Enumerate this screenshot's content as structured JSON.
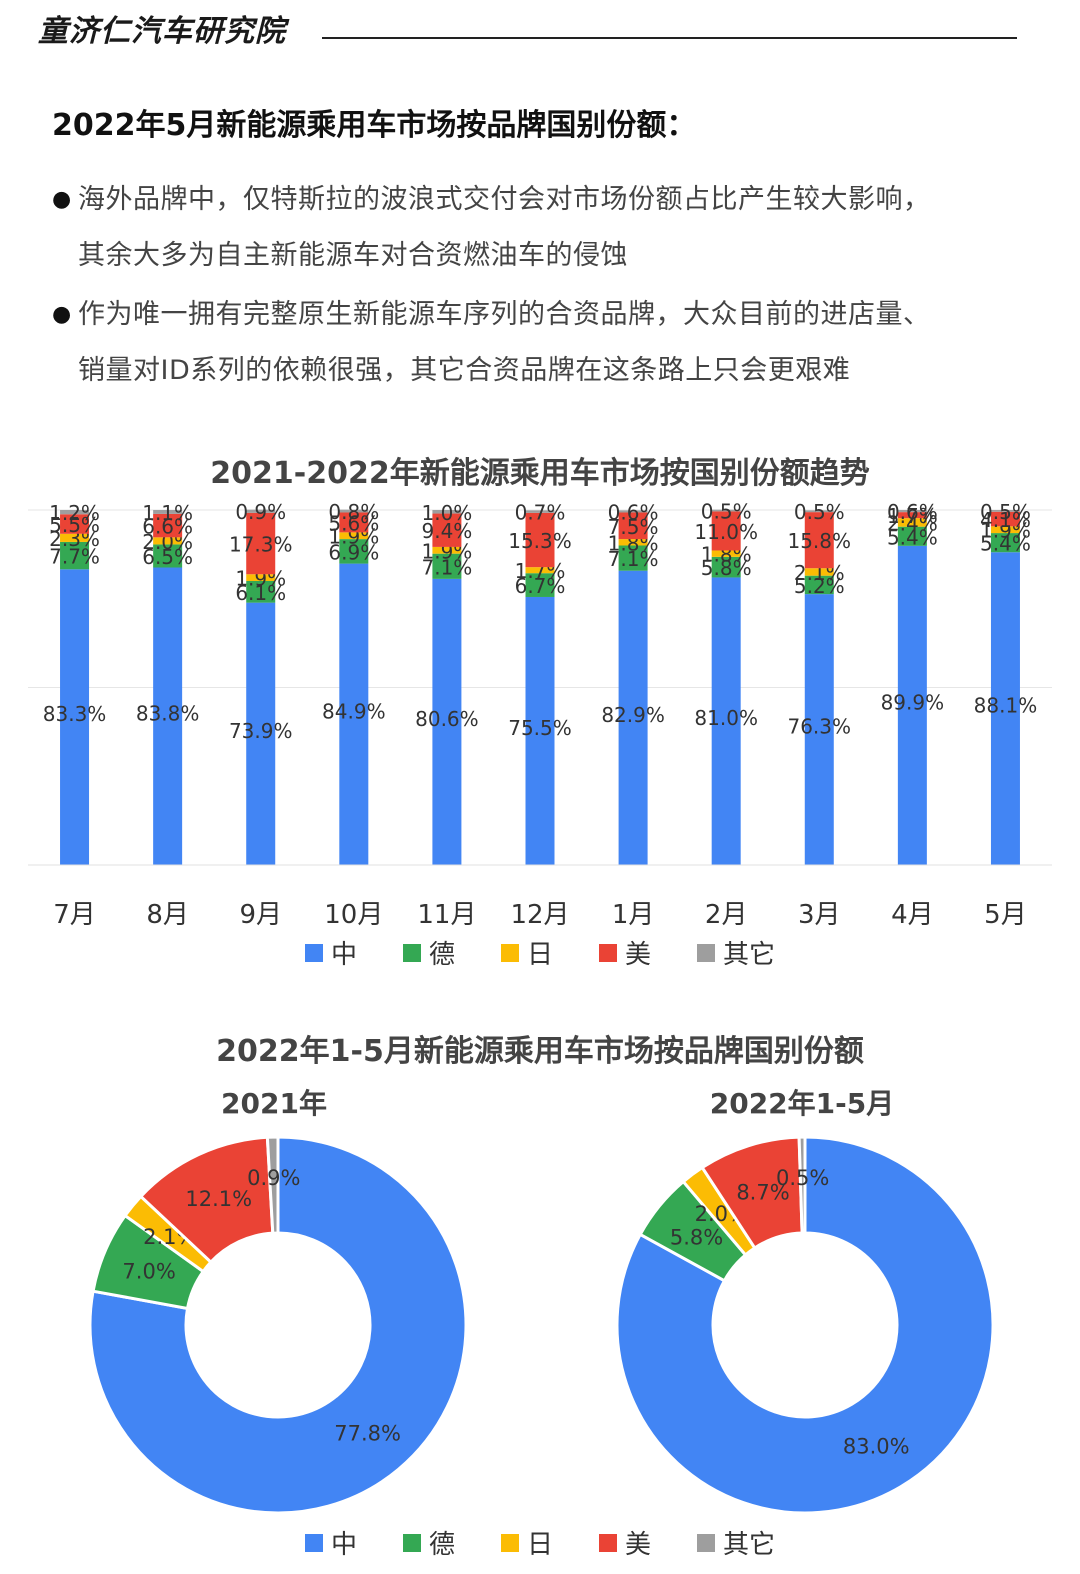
{
  "header": {
    "brand": "童济仁汽车研究院"
  },
  "heading": "2022年5月新能源乘用车市场按品牌国别份额：",
  "bullets": [
    {
      "lines": [
        "海外品牌中，仅特斯拉的波浪式交付会对市场份额占比产生较大影响，",
        "其余大多为自主新能源车对合资燃油车的侵蚀"
      ]
    },
    {
      "lines": [
        "作为唯一拥有完整原生新能源车序列的合资品牌，大众目前的进店量、",
        "销量对ID系列的依赖很强，其它合资品牌在这条路上只会更艰难"
      ]
    }
  ],
  "colors": {
    "中": "#4285f4",
    "德": "#34a853",
    "日": "#fbbc04",
    "美": "#ea4335",
    "其它": "#9e9e9e"
  },
  "chart_data": [
    {
      "type": "bar",
      "stacked": true,
      "title": "2021-2022年新能源乘用车市场按国别份额趋势",
      "categories": [
        "7月",
        "8月",
        "9月",
        "10月",
        "11月",
        "12月",
        "1月",
        "2月",
        "3月",
        "4月",
        "5月"
      ],
      "series": [
        {
          "name": "中",
          "values": [
            83.3,
            83.8,
            73.9,
            84.9,
            80.6,
            75.5,
            82.9,
            81.0,
            76.3,
            89.9,
            88.1
          ],
          "labels": [
            "83.3%",
            "83.8%",
            "73.9%",
            "84.9%",
            "80.6%",
            "75.5%",
            "82.9%",
            "81.0%",
            "76.3%",
            "89.9%",
            "88.1%"
          ]
        },
        {
          "name": "德",
          "values": [
            7.7,
            6.5,
            6.1,
            6.9,
            7.1,
            6.7,
            7.1,
            5.8,
            5.2,
            5.4,
            5.4
          ],
          "labels": [
            "7.7%",
            "6.5%",
            "6.1%",
            "6.9%",
            "7.1%",
            "6.7%",
            "7.1%",
            "5.8%",
            "5.2%",
            "5.4%",
            "5.4%"
          ]
        },
        {
          "name": "日",
          "values": [
            2.3,
            2.0,
            1.9,
            1.9,
            1.9,
            1.7,
            1.8,
            1.8,
            2.1,
            2.4,
            1.9
          ],
          "labels": [
            "2.3%",
            "2.0%",
            "1.9%",
            "1.9%",
            "1.9%",
            "1.7%",
            "1.8%",
            "1.8%",
            "2.1%",
            "2.4%",
            "1.9%"
          ]
        },
        {
          "name": "美",
          "values": [
            5.5,
            6.6,
            17.3,
            5.6,
            9.4,
            15.3,
            7.5,
            11.0,
            15.8,
            1.7,
            4.1
          ],
          "labels": [
            "5.5%",
            "6.6%",
            "17.3%",
            "5.6%",
            "9.4%",
            "15.3%",
            "7.5%",
            "11.0%",
            "15.8%",
            "1.7%",
            "4.1%"
          ]
        },
        {
          "name": "其它",
          "values": [
            1.2,
            1.1,
            0.9,
            0.8,
            1.0,
            0.7,
            0.6,
            0.5,
            0.5,
            0.6,
            0.5
          ],
          "labels": [
            "1.2%",
            "1.1%",
            "0.9%",
            "0.8%",
            "1.0%",
            "0.7%",
            "0.6%",
            "0.5%",
            "0.5%",
            "0.6%",
            "0.5%"
          ]
        }
      ],
      "ylim": [
        0,
        100
      ],
      "grid": true,
      "legend": "bottom"
    },
    {
      "type": "pie",
      "donut": true,
      "title": "2022年1-5月新能源乘用车市场按品牌国别份额",
      "charts": [
        {
          "subtitle": "2021年",
          "slices": [
            {
              "name": "中",
              "value": 77.8,
              "label": "77.8%"
            },
            {
              "name": "德",
              "value": 7.0,
              "label": "7.0%"
            },
            {
              "name": "日",
              "value": 2.1,
              "label": "2.1%"
            },
            {
              "name": "美",
              "value": 12.1,
              "label": "12.1%"
            },
            {
              "name": "其它",
              "value": 0.9,
              "label": "0.9%"
            }
          ]
        },
        {
          "subtitle": "2022年1-5月",
          "slices": [
            {
              "name": "中",
              "value": 83.0,
              "label": "83.0%"
            },
            {
              "name": "德",
              "value": 5.8,
              "label": "5.8%"
            },
            {
              "name": "日",
              "value": 2.0,
              "label": "2.0%"
            },
            {
              "name": "美",
              "value": 8.7,
              "label": "8.7%"
            },
            {
              "name": "其它",
              "value": 0.5,
              "label": "0.5%"
            }
          ]
        }
      ],
      "legend": "bottom"
    }
  ],
  "legend": [
    "中",
    "德",
    "日",
    "美",
    "其它"
  ]
}
